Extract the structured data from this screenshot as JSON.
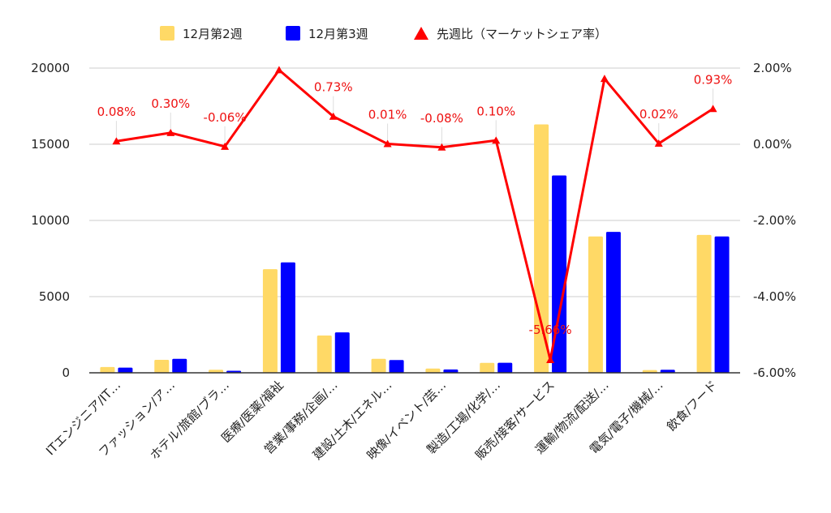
{
  "chart_data": {
    "type": "bar",
    "categories": [
      "ITエンジニア/IT…",
      "ファッション/ア…",
      "ホテル/旅館/ブラ…",
      "医療/医薬/福祉",
      "営業/事務/企画/…",
      "建設/土木/エネル…",
      "映像/イベント/芸…",
      "製造/工場/化学/…",
      "販売/接客/サービス",
      "運輸/物流/配送/…",
      "電気/電子/機械/…",
      "飲食/フード"
    ],
    "series": [
      {
        "name": "12月第2週",
        "type": "bar",
        "axis": "left",
        "color": "#ffd966",
        "values": [
          380,
          850,
          200,
          6800,
          2450,
          920,
          280,
          650,
          16300,
          8950,
          180,
          9050
        ]
      },
      {
        "name": "12月第3週",
        "type": "bar",
        "axis": "left",
        "color": "#0000ff",
        "values": [
          340,
          920,
          130,
          7250,
          2650,
          840,
          220,
          660,
          12950,
          9250,
          200,
          8950
        ]
      },
      {
        "name": "先週比（マーケットシェア率）",
        "type": "line",
        "axis": "right",
        "color": "#ff0000",
        "values": [
          0.08,
          0.3,
          -0.06,
          1.95,
          0.73,
          0.01,
          -0.08,
          0.1,
          -5.66,
          1.72,
          0.02,
          0.93
        ],
        "labels": [
          "0.08%",
          "0.30%",
          "-0.06%",
          "",
          "0.73%",
          "0.01%",
          "-0.08%",
          "0.10%",
          "-5.66%",
          "",
          "0.02%",
          "0.93%"
        ]
      }
    ],
    "left_axis": {
      "min": 0,
      "max": 20000,
      "ticks": [
        0,
        5000,
        10000,
        15000,
        20000
      ],
      "tick_labels": [
        "0",
        "5000",
        "10000",
        "15000",
        "20000"
      ]
    },
    "right_axis": {
      "min": -6,
      "max": 2,
      "ticks": [
        -6,
        -4,
        -2,
        0,
        2
      ],
      "tick_labels": [
        "-6.00%",
        "-4.00%",
        "-2.00%",
        "0.00%",
        "2.00%"
      ]
    },
    "grid": true,
    "legend_position": "top-center"
  }
}
